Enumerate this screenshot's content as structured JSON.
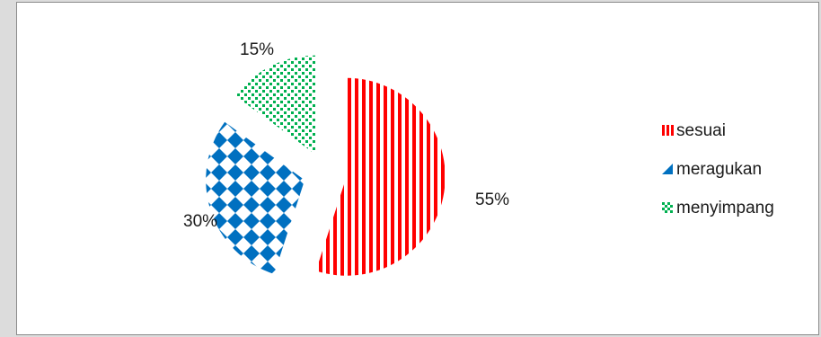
{
  "chart_data": {
    "type": "pie",
    "exploded": true,
    "slices": [
      {
        "label": "sesuai",
        "value": 55,
        "value_label": "55%",
        "color": "#ff0000",
        "pattern": "vertical-stripes"
      },
      {
        "label": "meragukan",
        "value": 30,
        "value_label": "30%",
        "color": "#0070c0",
        "pattern": "diamonds"
      },
      {
        "label": "menyimpang",
        "value": 15,
        "value_label": "15%",
        "color": "#00b050",
        "pattern": "dots"
      }
    ],
    "legend": {
      "placement": "right",
      "entries": [
        "sesuai",
        "meragukan",
        "menyimpang"
      ]
    }
  }
}
